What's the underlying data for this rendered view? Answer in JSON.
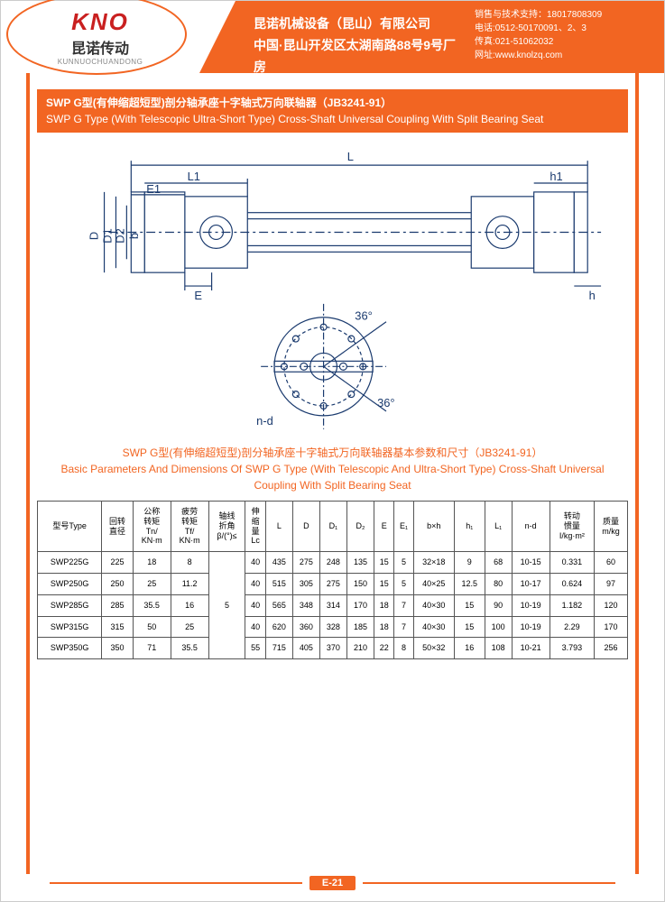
{
  "header": {
    "logo_brand": "KNO",
    "logo_cn": "昆诺传动",
    "logo_py": "KUNNUOCHUANDONG",
    "company_line1": "昆诺机械设备（昆山）有限公司",
    "company_line2": "中国·昆山开发区太湖南路88号9号厂房",
    "contact1": "销售与技术支持：18017808309",
    "contact2": "电话:0512-50170091、2、3",
    "contact3": "传真:021-51062032",
    "contact4": "网址:www.knolzq.com"
  },
  "title": {
    "zh": "SWP G型(有伸缩超短型)剖分轴承座十字轴式万向联轴器（JB3241-91）",
    "en": "SWP G Type (With Telescopic Ultra-Short Type) Cross-Shaft Universal Coupling With Split Bearing Seat"
  },
  "diagram_labels": {
    "L": "L",
    "L1": "L1",
    "E1": "E1",
    "D": "D",
    "D1": "D1",
    "D2": "D2",
    "b": "b",
    "E": "E",
    "h1": "h1",
    "h": "h",
    "ang": "36°",
    "nd": "n-d"
  },
  "subtitle": {
    "zh": "SWP G型(有伸缩超短型)剖分轴承座十字轴式万向联轴器基本参数和尺寸（JB3241-91）",
    "en": "Basic Parameters And Dimensions Of SWP G Type (With Telescopic And Ultra-Short Type) Cross-Shaft Universal Coupling With Split Bearing Seat"
  },
  "table": {
    "columns": [
      "型号Type",
      "回转\n直径",
      "公称\n转矩\nTn/\nKN·m",
      "疲劳\n转矩\nTf/\nKN·m",
      "轴线\n折角\nβ/(°)≤",
      "伸\n缩\n量\nLc",
      "L",
      "D",
      "D₁",
      "D₂",
      "E",
      "E₁",
      "b×h",
      "h₁",
      "L₁",
      "n-d",
      "转动\n惯量\nI/kg·m²",
      "质量\nm/kg"
    ],
    "merged_col": {
      "index": 4,
      "value": "5"
    },
    "rows": [
      [
        "SWP225G",
        "225",
        "18",
        "8",
        "40",
        "435",
        "275",
        "248",
        "135",
        "15",
        "5",
        "32×18",
        "9",
        "68",
        "10-15",
        "0.331",
        "60"
      ],
      [
        "SWP250G",
        "250",
        "25",
        "11.2",
        "40",
        "515",
        "305",
        "275",
        "150",
        "15",
        "5",
        "40×25",
        "12.5",
        "80",
        "10-17",
        "0.624",
        "97"
      ],
      [
        "SWP285G",
        "285",
        "35.5",
        "16",
        "40",
        "565",
        "348",
        "314",
        "170",
        "18",
        "7",
        "40×30",
        "15",
        "90",
        "10-19",
        "1.182",
        "120"
      ],
      [
        "SWP315G",
        "315",
        "50",
        "25",
        "40",
        "620",
        "360",
        "328",
        "185",
        "18",
        "7",
        "40×30",
        "15",
        "100",
        "10-19",
        "2.29",
        "170"
      ],
      [
        "SWP350G",
        "350",
        "71",
        "35.5",
        "55",
        "715",
        "405",
        "370",
        "210",
        "22",
        "8",
        "50×32",
        "16",
        "108",
        "10-21",
        "3.793",
        "256"
      ]
    ]
  },
  "footer": {
    "page": "E-21"
  },
  "colors": {
    "brand": "#f26522",
    "line": "#1a3a6e"
  }
}
